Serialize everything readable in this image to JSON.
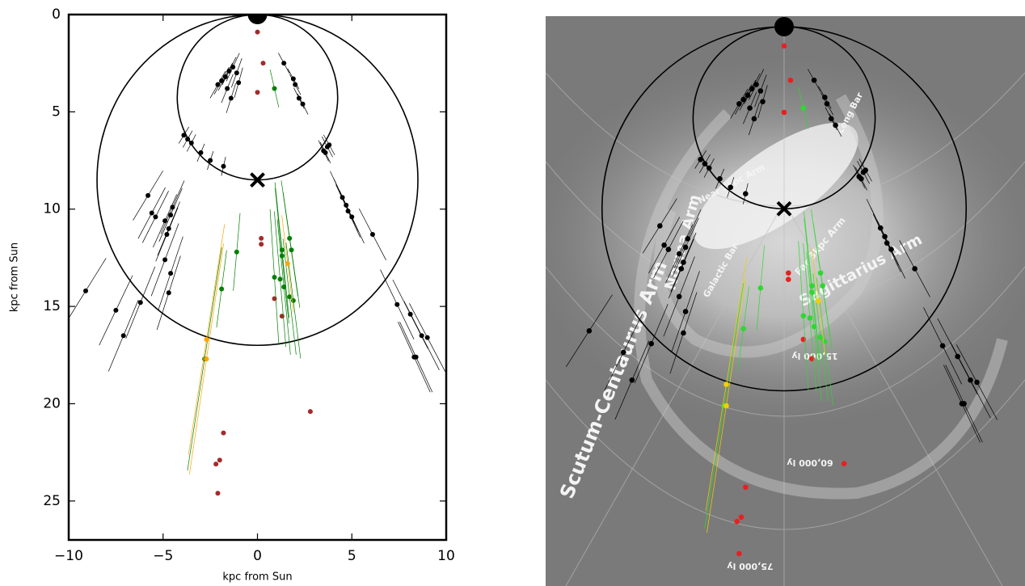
{
  "chart_data": {
    "type": "scatter",
    "xlabel": "kpc from Sun",
    "ylabel": "kpc from Sun",
    "xlim": [
      -10,
      10
    ],
    "ylim": [
      0,
      27
    ],
    "xticks": [
      {
        "value": -10,
        "label": "−10"
      },
      {
        "value": -5,
        "label": "−5"
      },
      0,
      5,
      10
    ],
    "yticks": [
      0,
      5,
      10,
      15,
      20,
      25
    ],
    "sun": {
      "x": 0,
      "y": 0
    },
    "galactic_center": {
      "x": 0,
      "y": 8.5
    },
    "series": [
      {
        "name": "black",
        "color": "#000000",
        "overlay_color": "#000000",
        "x": [
          -2.1,
          -1.9,
          -1.7,
          -1.5,
          -1.3,
          -1.1,
          -1.6,
          -1.4,
          -1.0,
          1.4,
          1.9,
          2.0,
          2.2,
          2.4,
          -3.9,
          -3.7,
          -3.5,
          -3.0,
          -2.5,
          -1.8,
          3.5,
          3.7,
          3.6,
          3.8,
          -5.8,
          -5.6,
          -5.4,
          -4.9,
          -4.7,
          -4.8,
          -4.6,
          -4.5,
          -4.9,
          -4.6,
          -4.7,
          -6.2,
          -7.5,
          -7.1,
          -9.1,
          4.5,
          4.7,
          4.8,
          5.0,
          6.1,
          7.4,
          8.1,
          8.7,
          9.0,
          8.3,
          8.4
        ],
        "y": [
          3.6,
          3.4,
          3.2,
          2.9,
          2.7,
          3.0,
          3.8,
          4.3,
          3.5,
          2.5,
          3.3,
          3.6,
          4.3,
          4.6,
          6.2,
          6.4,
          6.6,
          7.1,
          7.5,
          7.8,
          7.0,
          6.8,
          7.1,
          6.7,
          9.3,
          10.2,
          10.4,
          10.6,
          11.0,
          11.3,
          10.3,
          9.9,
          12.6,
          13.3,
          14.3,
          14.8,
          15.2,
          16.5,
          14.2,
          9.4,
          9.8,
          10.1,
          10.4,
          11.3,
          14.9,
          15.4,
          16.5,
          16.6,
          17.6,
          17.6
        ],
        "errors": [
          0.8,
          0.8,
          0.8,
          0.8,
          0.8,
          0.8,
          0.8,
          0.8,
          0.8,
          0.6,
          0.6,
          0.6,
          0.6,
          0.6,
          0.5,
          0.5,
          0.5,
          0.5,
          0.5,
          0.5,
          0.6,
          0.6,
          0.6,
          0.6,
          1.5,
          1.5,
          1.5,
          1.5,
          1.5,
          1.5,
          1.5,
          1.5,
          2.0,
          2.0,
          2.0,
          2.0,
          2.0,
          2.0,
          2.0,
          1.5,
          1.5,
          1.5,
          1.5,
          1.5,
          2.0,
          2.0,
          2.0,
          2.0,
          2.0,
          2.0
        ]
      },
      {
        "name": "red",
        "color": "#a52a2a",
        "overlay_color": "#e82020",
        "x": [
          0,
          0.3,
          0,
          0.2,
          0.2,
          0.9,
          1.3,
          2.8,
          -1.8,
          -2.0,
          -2.2,
          -2.1
        ],
        "y": [
          0.9,
          2.5,
          4.0,
          11.5,
          11.8,
          14.6,
          15.5,
          20.4,
          21.5,
          22.9,
          23.1,
          24.6
        ]
      },
      {
        "name": "green",
        "color": "#008000",
        "overlay_color": "#2ed830",
        "x": [
          0.9,
          -1.1,
          -1.9,
          1.3,
          1.3,
          1.7,
          1.8,
          0.9,
          1.2,
          1.4,
          1.7,
          1.9,
          -2.8
        ],
        "y": [
          3.8,
          12.2,
          14.1,
          12.1,
          12.4,
          11.5,
          12.1,
          13.5,
          13.6,
          14.0,
          14.5,
          14.7,
          17.7
        ],
        "errors": [
          1.0,
          2.0,
          2.0,
          3.5,
          3.5,
          3.0,
          3.0,
          3.5,
          3.5,
          3.5,
          3.0,
          3.0,
          5.8
        ]
      },
      {
        "name": "orange",
        "color": "#ffa500",
        "overlay_color": "#f0d000",
        "x": [
          1.6,
          -2.7,
          -2.7
        ],
        "y": [
          12.8,
          16.7,
          17.7
        ],
        "errors": [
          2.5,
          6.0,
          6.0
        ]
      }
    ]
  },
  "overlay_image": {
    "labels": [
      "Norma Arm",
      "Sagittarius Arm",
      "Scutum-Centaurus Arm",
      "Near 3kpc Arm",
      "Far 3kpc Arm",
      "Long Bar",
      "Galactic Bar",
      "15,000 ly",
      "60,000 ly",
      "75,000 ly"
    ]
  }
}
